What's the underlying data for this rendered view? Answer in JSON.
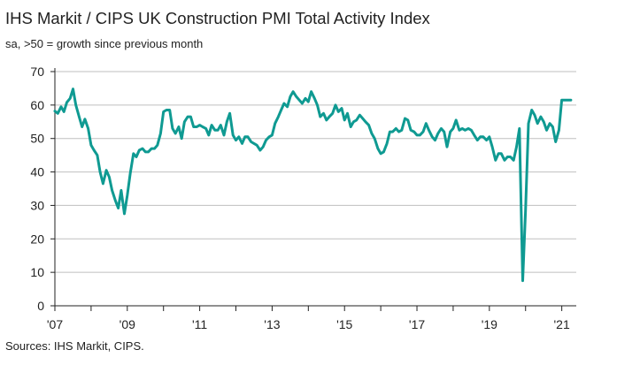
{
  "header": {
    "title": "IHS Markit / CIPS UK Construction PMI Total Activity Index",
    "subtitle": "sa, >50 = growth since previous month"
  },
  "footer": {
    "source": "Sources: IHS Markit, CIPS."
  },
  "colors": {
    "line": "#0f9a92",
    "grid": "#bfbfbf",
    "axis": "#222222"
  },
  "chart_data": {
    "type": "line",
    "title": "IHS Markit / CIPS UK Construction PMI Total Activity Index",
    "subtitle": "sa, >50 = growth since previous month",
    "xlabel": "",
    "ylabel": "",
    "ylim": [
      0,
      70
    ],
    "yticks": [
      0,
      10,
      20,
      30,
      40,
      50,
      60,
      70
    ],
    "xlim": [
      2007,
      2021.4
    ],
    "xticks": [
      {
        "x": 2007,
        "label": "'07"
      },
      {
        "x": 2009,
        "label": "'09"
      },
      {
        "x": 2011,
        "label": "'11"
      },
      {
        "x": 2013,
        "label": "'13"
      },
      {
        "x": 2015,
        "label": "'15"
      },
      {
        "x": 2017,
        "label": "'17"
      },
      {
        "x": 2019,
        "label": "'19"
      },
      {
        "x": 2021,
        "label": "'21"
      }
    ],
    "grid": true,
    "series": [
      {
        "x": [
          2007.0,
          2007.08,
          2007.17,
          2007.25,
          2007.33,
          2007.42,
          2007.5,
          2007.58,
          2007.67,
          2007.75,
          2007.83,
          2007.92,
          2008.0,
          2008.08,
          2008.17,
          2008.25,
          2008.33,
          2008.42,
          2008.5,
          2008.58,
          2008.67,
          2008.75,
          2008.83,
          2008.92,
          2009.0,
          2009.08,
          2009.17,
          2009.25,
          2009.33,
          2009.42,
          2009.5,
          2009.58,
          2009.67,
          2009.75,
          2009.83,
          2009.92,
          2010.0,
          2010.08,
          2010.17,
          2010.25,
          2010.33,
          2010.42,
          2010.5,
          2010.58,
          2010.67,
          2010.75,
          2010.83,
          2010.92,
          2011.0,
          2011.08,
          2011.17,
          2011.25,
          2011.33,
          2011.42,
          2011.5,
          2011.58,
          2011.67,
          2011.75,
          2011.83,
          2011.92,
          2012.0,
          2012.08,
          2012.17,
          2012.25,
          2012.33,
          2012.42,
          2012.5,
          2012.58,
          2012.67,
          2012.75,
          2012.83,
          2012.92,
          2013.0,
          2013.08,
          2013.17,
          2013.25,
          2013.33,
          2013.42,
          2013.5,
          2013.58,
          2013.67,
          2013.75,
          2013.83,
          2013.92,
          2014.0,
          2014.08,
          2014.17,
          2014.25,
          2014.33,
          2014.42,
          2014.5,
          2014.58,
          2014.67,
          2014.75,
          2014.83,
          2014.92,
          2015.0,
          2015.08,
          2015.17,
          2015.25,
          2015.33,
          2015.42,
          2015.5,
          2015.58,
          2015.67,
          2015.75,
          2015.83,
          2015.92,
          2016.0,
          2016.08,
          2016.17,
          2016.25,
          2016.33,
          2016.42,
          2016.5,
          2016.58,
          2016.67,
          2016.75,
          2016.83,
          2016.92,
          2017.0,
          2017.08,
          2017.17,
          2017.25,
          2017.33,
          2017.42,
          2017.5,
          2017.58,
          2017.67,
          2017.75,
          2017.83,
          2017.92,
          2018.0,
          2018.08,
          2018.17,
          2018.25,
          2018.33,
          2018.42,
          2018.5,
          2018.58,
          2018.67,
          2018.75,
          2018.83,
          2018.92,
          2019.0,
          2019.08,
          2019.17,
          2019.25,
          2019.33,
          2019.42,
          2019.5,
          2019.58,
          2019.67,
          2019.75,
          2019.83,
          2019.92,
          2020.0,
          2020.08,
          2020.17,
          2020.25,
          2020.33,
          2020.42,
          2020.5,
          2020.58,
          2020.67,
          2020.75,
          2020.83,
          2020.92,
          2021.0,
          2021.08,
          2021.17,
          2021.25
        ],
        "values": [
          58.2,
          57.5,
          59.5,
          58.0,
          60.8,
          62.0,
          64.8,
          60.0,
          56.5,
          53.5,
          55.8,
          53.0,
          48.0,
          46.5,
          45.0,
          40.0,
          36.5,
          40.5,
          38.5,
          34.5,
          31.5,
          29.2,
          34.5,
          27.5,
          33.0,
          39.5,
          45.5,
          44.5,
          46.5,
          47.0,
          46.0,
          46.0,
          47.0,
          47.0,
          48.0,
          51.5,
          58.0,
          58.5,
          58.5,
          53.0,
          51.5,
          53.5,
          50.0,
          55.0,
          56.5,
          56.5,
          53.5,
          53.5,
          54.0,
          53.5,
          53.0,
          51.0,
          54.0,
          52.5,
          52.5,
          54.0,
          51.0,
          55.0,
          57.5,
          51.0,
          49.5,
          50.5,
          48.5,
          50.5,
          50.5,
          49.0,
          48.5,
          48.0,
          46.5,
          47.5,
          49.5,
          50.5,
          51.0,
          54.5,
          56.5,
          58.5,
          60.5,
          59.5,
          62.5,
          64.0,
          62.5,
          61.5,
          60.5,
          62.0,
          61.0,
          64.0,
          62.0,
          60.0,
          56.5,
          57.5,
          55.5,
          56.5,
          57.5,
          60.0,
          58.0,
          59.0,
          55.5,
          57.5,
          53.5,
          55.0,
          55.5,
          57.0,
          56.0,
          55.0,
          54.0,
          51.5,
          50.0,
          47.0,
          45.5,
          46.0,
          48.5,
          52.0,
          52.0,
          53.0,
          52.0,
          52.5,
          56.0,
          55.5,
          52.5,
          52.0,
          51.0,
          51.0,
          52.0,
          54.5,
          52.5,
          50.5,
          49.5,
          51.5,
          53.0,
          52.0,
          47.5,
          52.0,
          53.0,
          55.5,
          52.5,
          53.0,
          52.5,
          53.0,
          52.5,
          51.0,
          49.5,
          50.5,
          50.5,
          49.5,
          50.5,
          47.5,
          43.5,
          45.5,
          45.5,
          43.5,
          44.5,
          44.5,
          43.5,
          47.5,
          53.0,
          7.5,
          28.5,
          54.5,
          58.5,
          57.0,
          54.5,
          56.5,
          55.0,
          52.5,
          54.5,
          53.5,
          49.0,
          52.5,
          61.5,
          61.5,
          61.5,
          61.5
        ]
      }
    ]
  }
}
